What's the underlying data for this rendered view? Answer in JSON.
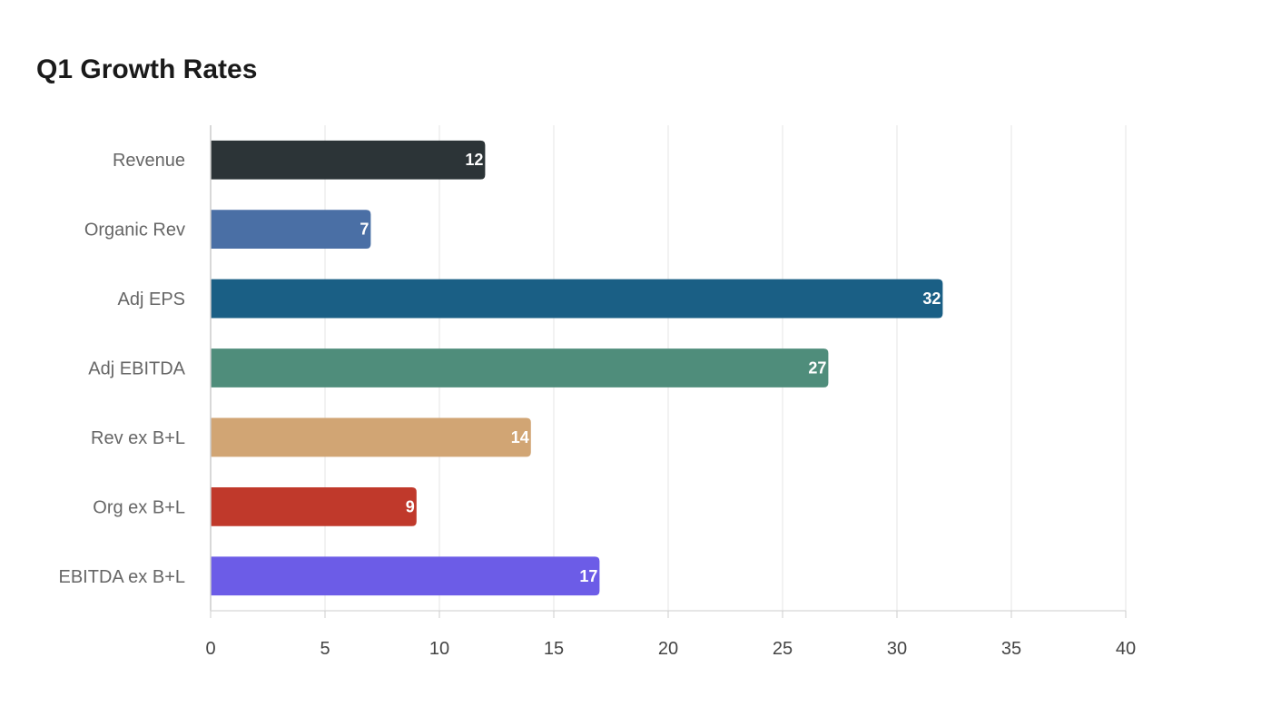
{
  "chart_data": {
    "type": "bar",
    "orientation": "horizontal",
    "title": "Q1 Growth Rates",
    "xlabel": "",
    "ylabel": "",
    "categories": [
      "Revenue",
      "Organic Rev",
      "Adj EPS",
      "Adj EBITDA",
      "Rev ex B+L",
      "Org ex B+L",
      "EBITDA ex B+L"
    ],
    "values": [
      12,
      7,
      32,
      27,
      14,
      9,
      17
    ],
    "colors": [
      "#2c3437",
      "#4a6fa5",
      "#1a5f85",
      "#4f8d7b",
      "#d1a574",
      "#c0392b",
      "#6c5ce7"
    ],
    "xlim": [
      0,
      40
    ],
    "xticks": [
      0,
      5,
      10,
      15,
      20,
      25,
      30,
      35,
      40
    ],
    "grid": "vertical",
    "legend": "none",
    "data_labels": "inside-end, white"
  }
}
